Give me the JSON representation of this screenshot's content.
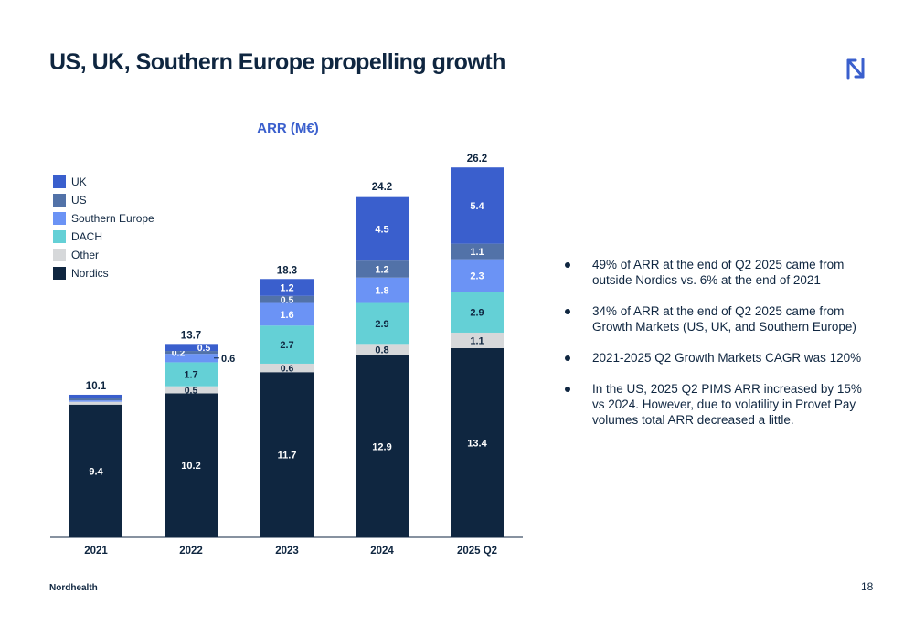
{
  "page": {
    "title": "US, UK, Southern Europe propelling growth",
    "footer_brand": "Nordhealth",
    "page_number": "18",
    "logo_icon": "nordhealth-logo-icon"
  },
  "bullets": [
    "49% of ARR at the end of Q2 2025 came from outside Nordics vs. 6% at the end of 2021",
    "34% of ARR at the end of Q2 2025 came from Growth Markets (US, UK, and Southern Europe)",
    "2021-2025 Q2 Growth Markets CAGR was 120%",
    "In the US, 2025 Q2 PIMS ARR increased by 15% vs 2024. However, due to volatility in Provet Pay volumes total ARR decreased a little."
  ],
  "chart_data": {
    "type": "bar",
    "stacked": true,
    "title": "ARR (M€)",
    "xlabel": "",
    "ylabel": "",
    "ylim": [
      0,
      26.2
    ],
    "grid": false,
    "legend_position": "top-left",
    "categories": [
      "2021",
      "2022",
      "2023",
      "2024",
      "2025 Q2"
    ],
    "totals": [
      10.1,
      13.7,
      18.3,
      24.2,
      26.2
    ],
    "series": [
      {
        "name": "Nordics",
        "color": "#0f2640",
        "values": [
          9.4,
          10.2,
          11.7,
          12.9,
          13.4
        ],
        "labels": [
          "9.4",
          "10.2",
          "11.7",
          "12.9",
          "13.4"
        ]
      },
      {
        "name": "Other",
        "color": "#d6d8da",
        "values": [
          0.2,
          0.5,
          0.6,
          0.8,
          1.1
        ],
        "labels": [
          "",
          "0.5",
          "0.6",
          "0.8",
          "1.1"
        ]
      },
      {
        "name": "DACH",
        "color": "#64d0d6",
        "values": [
          0,
          1.7,
          2.7,
          2.9,
          2.9
        ],
        "labels": [
          "",
          "1.7",
          "2.7",
          "2.9",
          "2.9"
        ]
      },
      {
        "name": "Southern Europe",
        "color": "#6b93f5",
        "values": [
          0.1,
          0.6,
          1.6,
          1.8,
          2.3
        ],
        "labels": [
          "",
          "0.6",
          "1.6",
          "1.8",
          "2.3"
        ]
      },
      {
        "name": "US",
        "color": "#5272a8",
        "values": [
          0.2,
          0.2,
          0.5,
          1.2,
          1.1
        ],
        "labels": [
          "",
          "0.2",
          "0.5",
          "1.2",
          "1.1"
        ]
      },
      {
        "name": "UK",
        "color": "#3a5fcd",
        "values": [
          0.2,
          0.5,
          1.2,
          4.5,
          5.4
        ],
        "labels": [
          "",
          "0.5",
          "1.2",
          "4.5",
          "5.4"
        ]
      }
    ],
    "legend_order": [
      "UK",
      "US",
      "Southern Europe",
      "DACH",
      "Other",
      "Nordics"
    ]
  }
}
